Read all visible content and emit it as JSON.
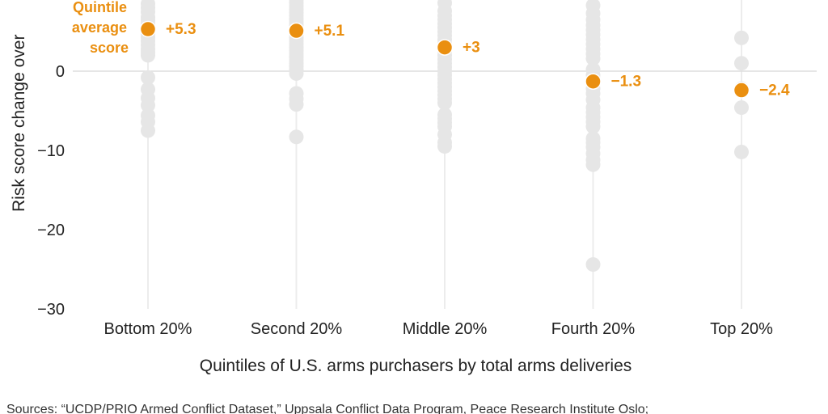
{
  "chart_data": {
    "type": "scatter",
    "ylabel": "Risk score change over",
    "xlabel": "Quintiles of U.S. arms purchasers by total arms deliveries",
    "ylim": [
      -30,
      10
    ],
    "yticks": [
      0,
      -10,
      -20,
      -30
    ],
    "ytick_labels": [
      "0",
      "−10",
      "−20",
      "−30"
    ],
    "grid": "horizontal line at 0",
    "legend": {
      "lines": [
        "Quintile",
        "average",
        "score"
      ],
      "placement": "top-left, beside first marker"
    },
    "colors": {
      "points": "#e6e6e6",
      "stem": "#ececec",
      "average": "#ea8f10",
      "zero_line": "#dddddd"
    },
    "categories": [
      "Bottom 20%",
      "Second 20%",
      "Middle 20%",
      "Fourth 20%",
      "Top 20%"
    ],
    "points": [
      [
        9.5,
        8.5,
        8,
        7.5,
        6.8,
        6.4,
        6,
        5.6,
        5.2,
        4.8,
        4.3,
        3.8,
        3.3,
        2.8,
        2.4,
        2,
        -0.8,
        -2.3,
        -3.4,
        -4.3,
        -5.6,
        -6.4,
        -7.5
      ],
      [
        9.5,
        9,
        8.6,
        8.2,
        7.8,
        7.4,
        7,
        6.6,
        6.2,
        5.8,
        5.4,
        5,
        4.6,
        4.2,
        3.8,
        3.4,
        3,
        2.6,
        2.2,
        1.8,
        1.4,
        1,
        0.6,
        0.2,
        -0.3,
        -2.8,
        -3.5,
        -4.2,
        -8.3
      ],
      [
        8.6,
        7.6,
        7,
        6.5,
        6,
        5.5,
        5,
        4.5,
        4,
        3.5,
        3,
        2.5,
        2,
        1.5,
        1,
        0.5,
        0,
        -0.5,
        -1,
        -1.5,
        -2,
        -2.5,
        -3,
        -3.5,
        -4,
        -5.5,
        -6,
        -6.5,
        -7,
        -8,
        -9,
        -9.5
      ],
      [
        8.3,
        7.3,
        6.5,
        5.8,
        5.2,
        4.6,
        4,
        3.4,
        2.8,
        2.2,
        1.6,
        0.2,
        -0.5,
        -1,
        -1.6,
        -2.2,
        -2.8,
        -3.6,
        -4.6,
        -5.2,
        -5.8,
        -6.4,
        -7,
        -8.5,
        -9,
        -9.6,
        -10.4,
        -11.2,
        -11.8,
        -24.4
      ],
      [
        4.2,
        1,
        -2.2,
        -4.6,
        -10.2
      ]
    ],
    "averages": [
      5.3,
      5.1,
      3,
      -1.3,
      -2.4
    ],
    "average_labels": [
      "+5.3",
      "+5.1",
      "+3",
      "−1.3",
      "−2.4"
    ],
    "source_text": "Sources: “UCDP/PRIO Armed Conflict Dataset,” Uppsala Conflict Data Program, Peace Research Institute Oslo;"
  }
}
